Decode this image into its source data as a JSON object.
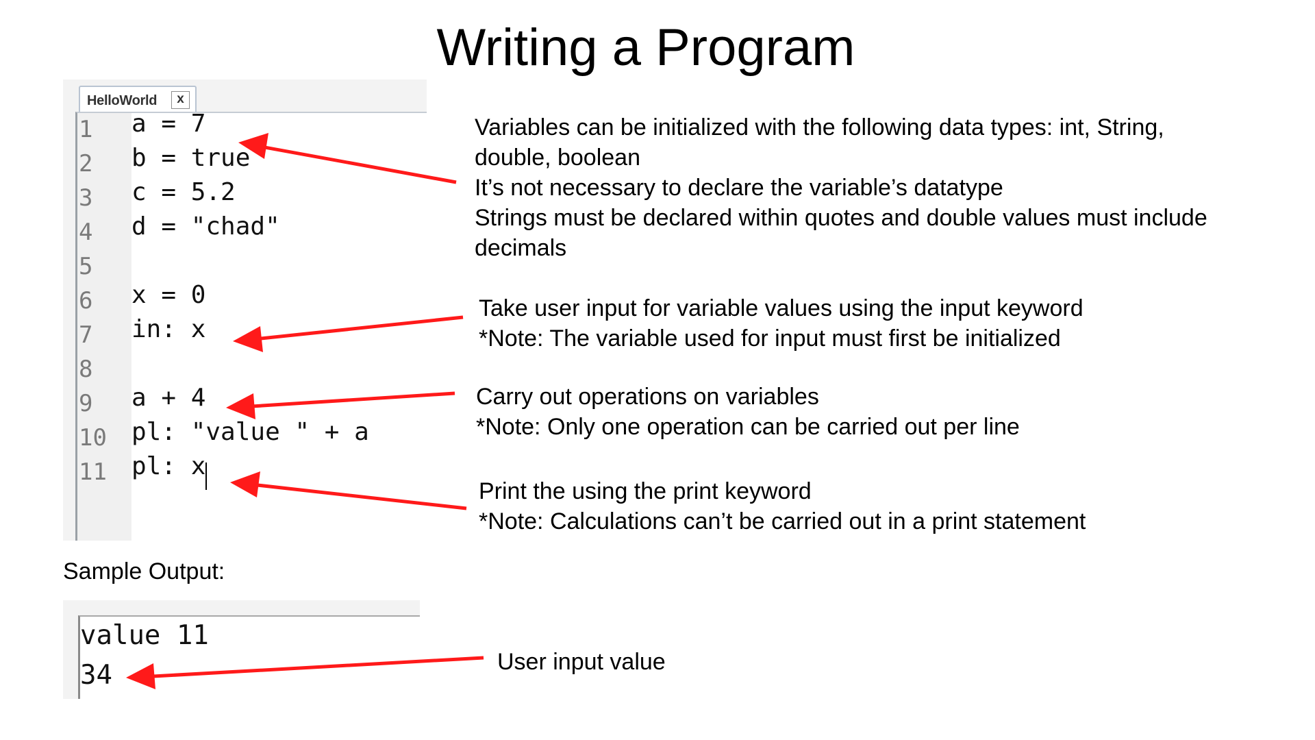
{
  "title": "Writing a Program",
  "editor": {
    "tab_label": "HelloWorld",
    "tab_close_label": "x",
    "lines": [
      {
        "number": "1",
        "code": "a = 7"
      },
      {
        "number": "2",
        "code": "b = true"
      },
      {
        "number": "3",
        "code": "c = 5.2"
      },
      {
        "number": "4",
        "code": "d = \"chad\""
      },
      {
        "number": "5",
        "code": ""
      },
      {
        "number": "6",
        "code": "x = 0"
      },
      {
        "number": "7",
        "code": "in: x"
      },
      {
        "number": "8",
        "code": ""
      },
      {
        "number": "9",
        "code": "a + 4"
      },
      {
        "number": "10",
        "code": "pl: \"value \" + a"
      },
      {
        "number": "11",
        "code": "pl: x"
      }
    ]
  },
  "annotations": [
    {
      "lines": [
        "Variables can be initialized with the following data types: int, String,",
        "double, boolean",
        "It’s not necessary to declare the variable’s datatype",
        "Strings must be declared within quotes and double values must include",
        "decimals"
      ]
    },
    {
      "lines": [
        "Take user input for variable values using the input keyword",
        "*Note: The variable used for input must first be initialized"
      ]
    },
    {
      "lines": [
        "Carry out operations on variables",
        "*Note: Only one operation can be carried out per line"
      ]
    },
    {
      "lines": [
        "Print the using the print keyword",
        "*Note: Calculations can’t be carried out in a print statement"
      ]
    }
  ],
  "sample_output": {
    "label": "Sample Output:",
    "lines": [
      "value 11",
      "34"
    ],
    "annotation": "User input value"
  },
  "colors": {
    "arrow": "#ff1a1a",
    "editor_background": "#f3f3f3",
    "tab_border": "#b9c4d2"
  }
}
